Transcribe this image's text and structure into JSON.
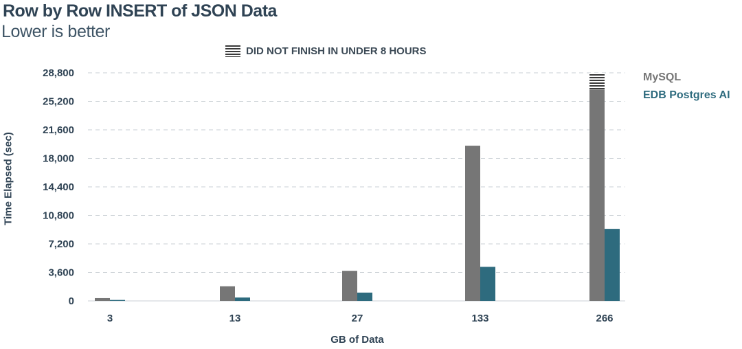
{
  "chart_data": {
    "type": "bar",
    "title": "Row by Row INSERT of JSON Data",
    "subtitle": "Lower is better",
    "xlabel": "GB of Data",
    "ylabel": "Time Elapsed (sec)",
    "categories": [
      "3",
      "13",
      "27",
      "133",
      "266"
    ],
    "ylim": [
      0,
      28800
    ],
    "yticks": [
      0,
      3600,
      7200,
      10800,
      14400,
      18000,
      21600,
      25200,
      28800
    ],
    "ytick_labels": [
      "0",
      "3,600",
      "7,200",
      "10,800",
      "14,400",
      "18,000",
      "21,600",
      "25,200",
      "28,800"
    ],
    "grid": true,
    "legend_position": "right",
    "series": [
      {
        "name": "MySQL",
        "color": "#767676",
        "values": [
          350,
          1850,
          3800,
          19600,
          28800
        ]
      },
      {
        "name": "EDB Postgres AI",
        "color": "#2e6b7e",
        "values": [
          120,
          430,
          1050,
          4300,
          9100
        ]
      }
    ],
    "annotation": {
      "label": "DID NOT FINISH IN UNDER 8 HOURS",
      "applies_to": {
        "series": "MySQL",
        "category": "266"
      },
      "hatched_from": 26700
    }
  }
}
